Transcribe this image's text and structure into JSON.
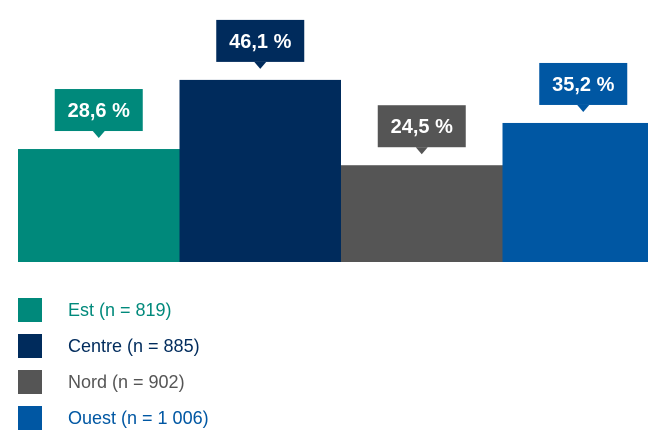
{
  "chart_data": {
    "type": "bar",
    "categories": [
      "Est (n = 819)",
      "Centre (n = 885)",
      "Nord (n = 902)",
      "Ouest (n = 1 006)"
    ],
    "values": [
      28.6,
      46.1,
      24.5,
      35.2
    ],
    "data_labels": [
      "28,6 %",
      "46,1 %",
      "24,5 %",
      "35,2 %"
    ],
    "colors": [
      "#00897b",
      "#002b5c",
      "#555555",
      "#0057a3"
    ],
    "legend_text_colors": [
      "#00897b",
      "#002b5c",
      "#555555",
      "#0057a3"
    ],
    "ylim": [
      0,
      50
    ],
    "grid": false,
    "legend_position": "bottom-left"
  }
}
